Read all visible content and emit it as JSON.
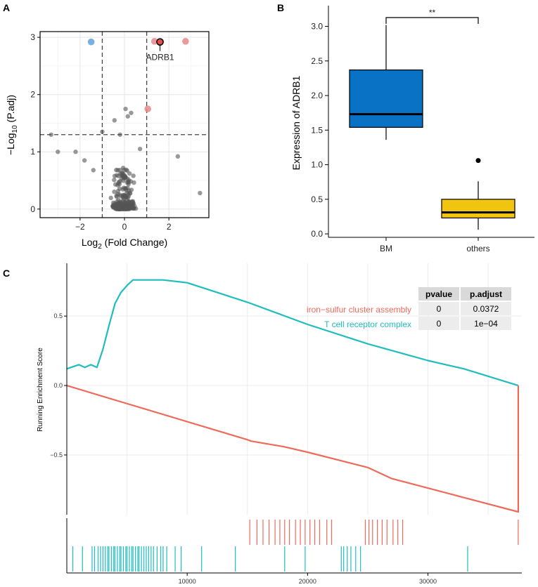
{
  "chart_data": [
    {
      "panel": "A",
      "type": "scatter",
      "title": "",
      "xlabel_prefix": "Log",
      "xlabel_sub": "2",
      "xlabel_suffix": " (Fold Change)",
      "ylabel_prefix": "−Log",
      "ylabel_sub": "10",
      "ylabel_suffix": " (P.adj)",
      "xlim": [
        -3.8,
        3.8
      ],
      "ylim": [
        -0.15,
        3.1
      ],
      "xticks": [
        -2,
        0,
        2
      ],
      "yticks": [
        0,
        1,
        2,
        3
      ],
      "vlines": [
        -1,
        1
      ],
      "hline": 1.3,
      "colors": {
        "grey": "#555555",
        "up": "#e8888a",
        "down": "#5fa5dd",
        "label": "#e05050"
      },
      "highlight": [
        {
          "x": -1.5,
          "y": 2.92,
          "group": "down"
        },
        {
          "x": 1.35,
          "y": 2.93,
          "group": "up"
        },
        {
          "x": 2.75,
          "y": 2.93,
          "group": "up"
        },
        {
          "x": 1.05,
          "y": 1.75,
          "group": "up"
        }
      ],
      "labeled_point": {
        "x": 1.6,
        "y": 2.92,
        "label": "ADRB1"
      }
    },
    {
      "panel": "B",
      "type": "box",
      "xlabel": "",
      "ylabel": "Expression of ADRB1",
      "categories": [
        "BM",
        "others"
      ],
      "ylim": [
        -0.05,
        3.3
      ],
      "yticks": [
        "0.0",
        "0.5",
        "1.0",
        "1.5",
        "2.0",
        "2.5",
        "3.0"
      ],
      "boxes": [
        {
          "name": "BM",
          "min": 1.36,
          "q1": 1.54,
          "median": 1.73,
          "q3": 2.37,
          "max": 3.02,
          "outliers": [],
          "color": "#0a72c4"
        },
        {
          "name": "others",
          "min": 0.06,
          "q1": 0.23,
          "median": 0.31,
          "q3": 0.5,
          "max": 0.76,
          "outliers": [
            1.06
          ],
          "color": "#f1c40f"
        }
      ],
      "significance": "**"
    },
    {
      "panel": "C",
      "type": "line",
      "xlabel": "",
      "ylabel": "Running Enrichment Score",
      "xlim": [
        0,
        37800
      ],
      "ylim": [
        -0.93,
        0.88
      ],
      "xticks": [
        10000,
        20000,
        30000
      ],
      "yticks": [
        -0.5,
        0.0,
        0.5
      ],
      "ytick_labels": [
        "−0.5",
        "0.0",
        "0.5"
      ],
      "series": [
        {
          "name": "iron−sulfur cluster assembly",
          "color": "#ee6a5b",
          "x": [
            0,
            15000,
            15300,
            18000,
            20000,
            25000,
            27000,
            37500,
            37500
          ],
          "y": [
            0.0,
            -0.39,
            -0.4,
            -0.44,
            -0.48,
            -0.59,
            -0.67,
            -0.91,
            0.0
          ]
        },
        {
          "name": "T cell receptor complex",
          "color": "#1fbdbf",
          "x": [
            0,
            1000,
            1500,
            2000,
            2500,
            3000,
            3500,
            4000,
            4500,
            5000,
            5500,
            6000,
            7000,
            8000,
            10000,
            15000,
            20000,
            25000,
            30000,
            33000,
            37500
          ],
          "y": [
            0.12,
            0.15,
            0.13,
            0.15,
            0.13,
            0.26,
            0.43,
            0.59,
            0.67,
            0.72,
            0.76,
            0.76,
            0.76,
            0.76,
            0.74,
            0.6,
            0.44,
            0.3,
            0.18,
            0.12,
            0.0
          ]
        }
      ],
      "hits": [
        {
          "series": "iron−sulfur cluster assembly",
          "positions": [
            15200,
            15800,
            16300,
            16800,
            17300,
            17700,
            18100,
            18500,
            19000,
            19400,
            19800,
            20200,
            20600,
            21000,
            21600,
            22000,
            24800,
            25100,
            25400,
            25800,
            26200,
            26600,
            27100,
            27500,
            27900,
            37500
          ]
        },
        {
          "series": "T cell receptor complex",
          "positions": [
            500,
            1300,
            2100,
            2300,
            2600,
            2800,
            3000,
            3200,
            3400,
            3500,
            3700,
            3900,
            4000,
            4200,
            4400,
            4500,
            4700,
            4900,
            5000,
            5200,
            5400,
            5500,
            5700,
            5900,
            6000,
            6200,
            6400,
            6600,
            6800,
            7000,
            7200,
            7500,
            7800,
            8000,
            8300,
            9000,
            9500,
            11200,
            14000,
            18100,
            19800,
            22800,
            23000,
            23300,
            23600,
            24000,
            24400,
            33300
          ]
        }
      ],
      "table": {
        "headers": [
          "pvalue",
          "p.adjust"
        ],
        "rows": [
          [
            "0",
            "0.0372"
          ],
          [
            "0",
            "1e−04"
          ]
        ]
      }
    }
  ],
  "panel_labels": [
    "A",
    "B",
    "C"
  ]
}
